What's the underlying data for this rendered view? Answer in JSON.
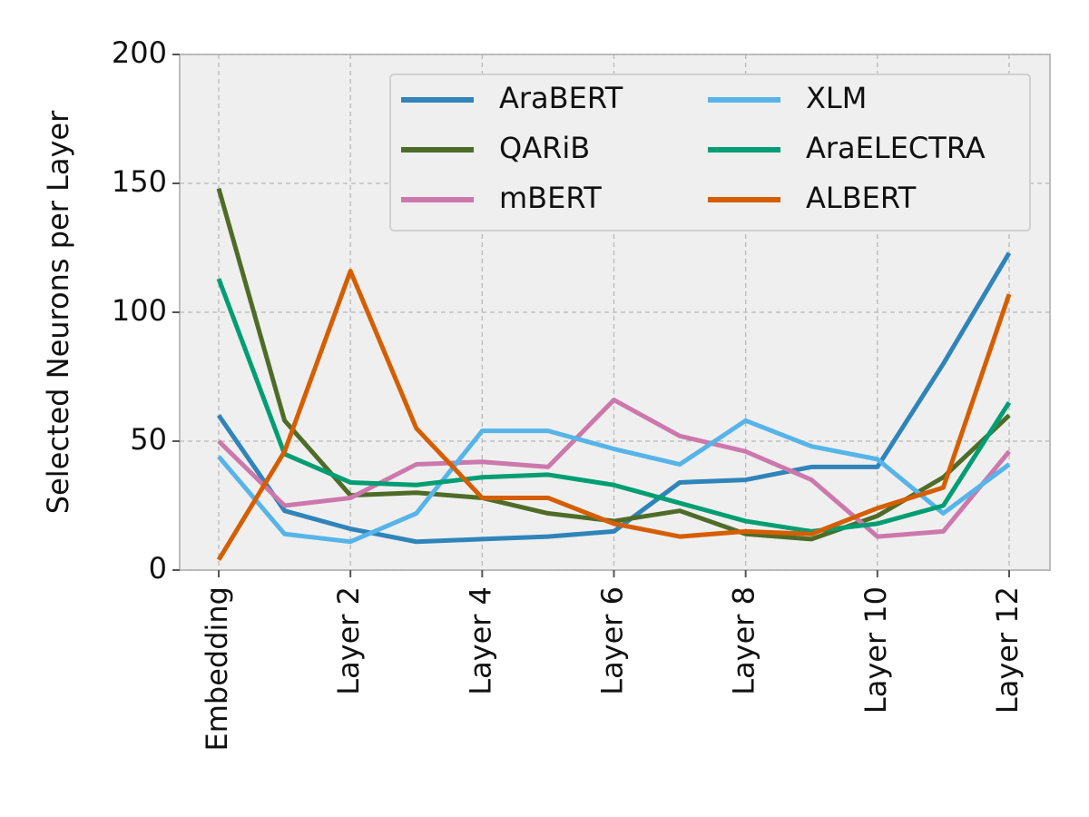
{
  "chart_data": {
    "type": "line",
    "ylabel": "Selected Neurons per Layer",
    "categories": [
      "Embedding",
      null,
      "Layer 2",
      null,
      "Layer 4",
      null,
      "Layer 6",
      null,
      "Layer 8",
      null,
      "Layer 10",
      null,
      "Layer 12"
    ],
    "ylim": [
      0,
      200
    ],
    "yticks": [
      0,
      50,
      100,
      150,
      200
    ],
    "grid": true,
    "legend": "upper right",
    "series": [
      {
        "name": "AraBERT",
        "color": "#2f84ba",
        "values": [
          60,
          23,
          16,
          11,
          12,
          13,
          15,
          34,
          35,
          40,
          40,
          80,
          123
        ]
      },
      {
        "name": "QARiB",
        "color": "#4e6c28",
        "values": [
          148,
          58,
          29,
          30,
          28,
          22,
          19,
          23,
          14,
          12,
          21,
          36,
          60
        ]
      },
      {
        "name": "mBERT",
        "color": "#cc78ac",
        "values": [
          50,
          25,
          28,
          41,
          42,
          40,
          66,
          52,
          46,
          35,
          13,
          15,
          46
        ]
      },
      {
        "name": "XLM",
        "color": "#56b4e9",
        "values": [
          44,
          14,
          11,
          22,
          54,
          54,
          47,
          41,
          58,
          48,
          43,
          22,
          41
        ]
      },
      {
        "name": "AraELECTRA",
        "color": "#029e73",
        "values": [
          113,
          45,
          34,
          33,
          36,
          37,
          33,
          26,
          19,
          15,
          18,
          25,
          65
        ]
      },
      {
        "name": "ALBERT",
        "color": "#d55e00",
        "values": [
          4,
          46,
          116,
          55,
          28,
          28,
          18,
          13,
          15,
          14,
          24,
          32,
          107
        ]
      }
    ]
  }
}
